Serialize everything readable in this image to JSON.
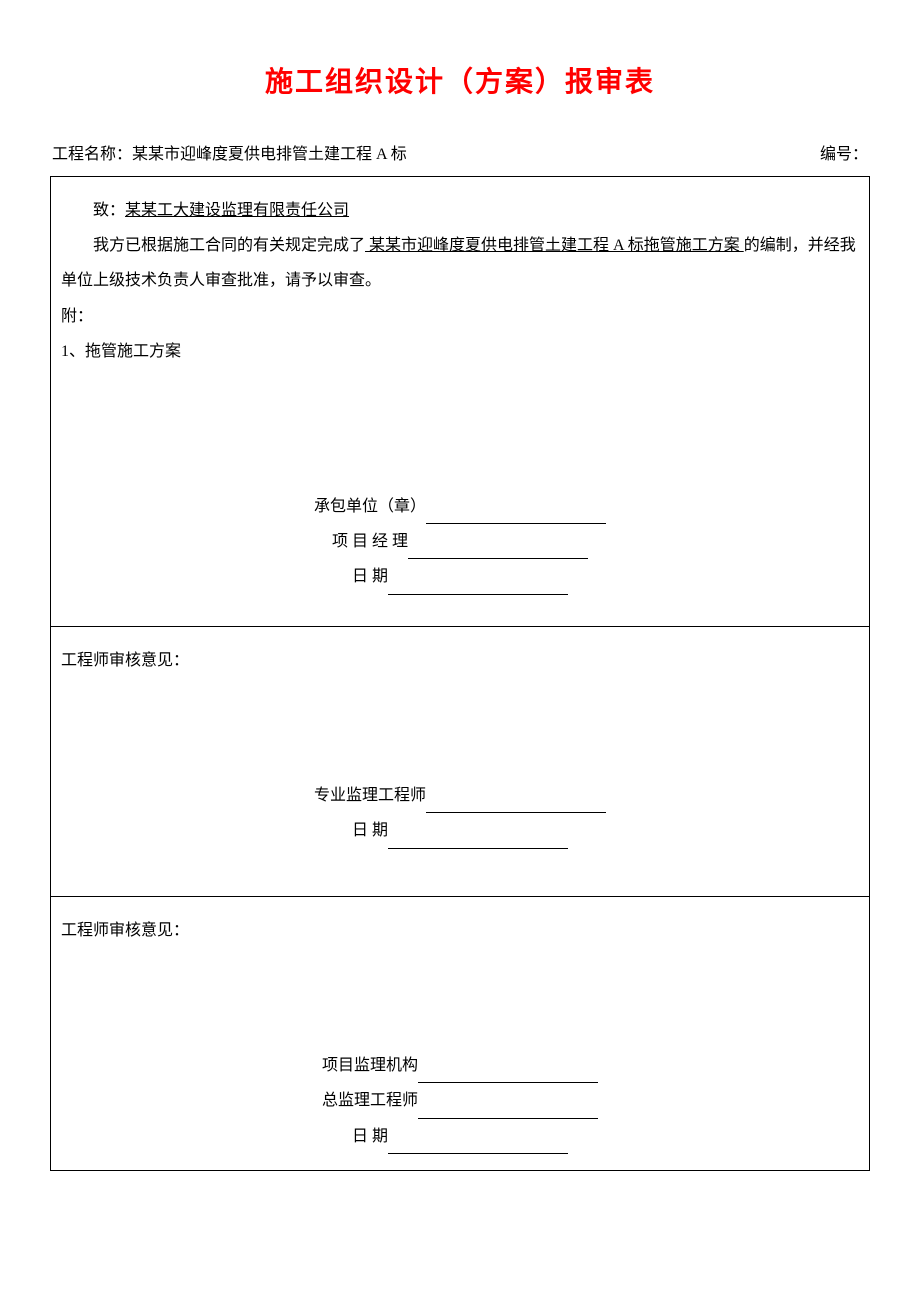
{
  "document": {
    "title": "施工组织设计（方案）报审表",
    "title_color": "#ff0000",
    "title_fontsize": 28,
    "body_fontsize": 16,
    "border_color": "#000000",
    "background_color": "#ffffff",
    "header": {
      "project_label": "工程名称：",
      "project_value": "某某市迎峰度夏供电排管土建工程 A 标",
      "serial_label": "编号："
    },
    "section1": {
      "to_label": "致：",
      "to_value": "某某工大建设监理有限责任公司",
      "body_prefix": "我方已根据施工合同的有关规定完成了",
      "body_underlined": "  某某市迎峰度夏供电排管土建工程 A 标拖管施工方案   ",
      "body_suffix": "的编制，并经我单位上级技术负责人审查批准，请予以审查。",
      "attach_label": "附：",
      "attach_item": "1、拖管施工方案",
      "signature": {
        "line1_label": "承包单位（章）",
        "line2_label": "项 目 经 理",
        "line3_label": "日       期"
      }
    },
    "section2": {
      "heading": "工程师审核意见：",
      "signature": {
        "line1_label": "专业监理工程师",
        "line2_label": "日   期"
      }
    },
    "section3": {
      "heading": "工程师审核意见：",
      "signature": {
        "line1_label": "项目监理机构",
        "line2_label": "总监理工程师",
        "line3_label": "日   期"
      }
    }
  }
}
